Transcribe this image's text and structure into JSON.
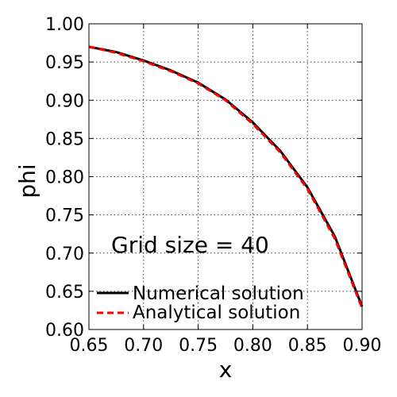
{
  "chart_data": {
    "type": "line",
    "title": "",
    "xlabel": "x",
    "ylabel": "phi",
    "xlim": [
      0.65,
      0.9
    ],
    "ylim": [
      0.6,
      1.0
    ],
    "x_ticks": [
      "0.65",
      "0.70",
      "0.75",
      "0.80",
      "0.85",
      "0.90"
    ],
    "y_ticks": [
      "0.60",
      "0.65",
      "0.70",
      "0.75",
      "0.80",
      "0.85",
      "0.90",
      "0.95",
      "1.00"
    ],
    "grid": true,
    "legend_position": "bottom-left",
    "annotation": "Grid size = 40",
    "series": [
      {
        "name": "Numerical solution",
        "color": "#000000",
        "style": "solid",
        "x": [
          0.65,
          0.675,
          0.7,
          0.725,
          0.75,
          0.775,
          0.8,
          0.825,
          0.85,
          0.875,
          0.9
        ],
        "y": [
          0.97,
          0.963,
          0.952,
          0.939,
          0.923,
          0.901,
          0.871,
          0.834,
          0.786,
          0.722,
          0.63
        ]
      },
      {
        "name": "Analytical solution",
        "color": "#ff0000",
        "style": "dashed",
        "x": [
          0.65,
          0.675,
          0.7,
          0.725,
          0.75,
          0.775,
          0.8,
          0.825,
          0.85,
          0.875,
          0.9
        ],
        "y": [
          0.97,
          0.962,
          0.951,
          0.938,
          0.922,
          0.9,
          0.869,
          0.832,
          0.784,
          0.719,
          0.628
        ]
      }
    ]
  }
}
